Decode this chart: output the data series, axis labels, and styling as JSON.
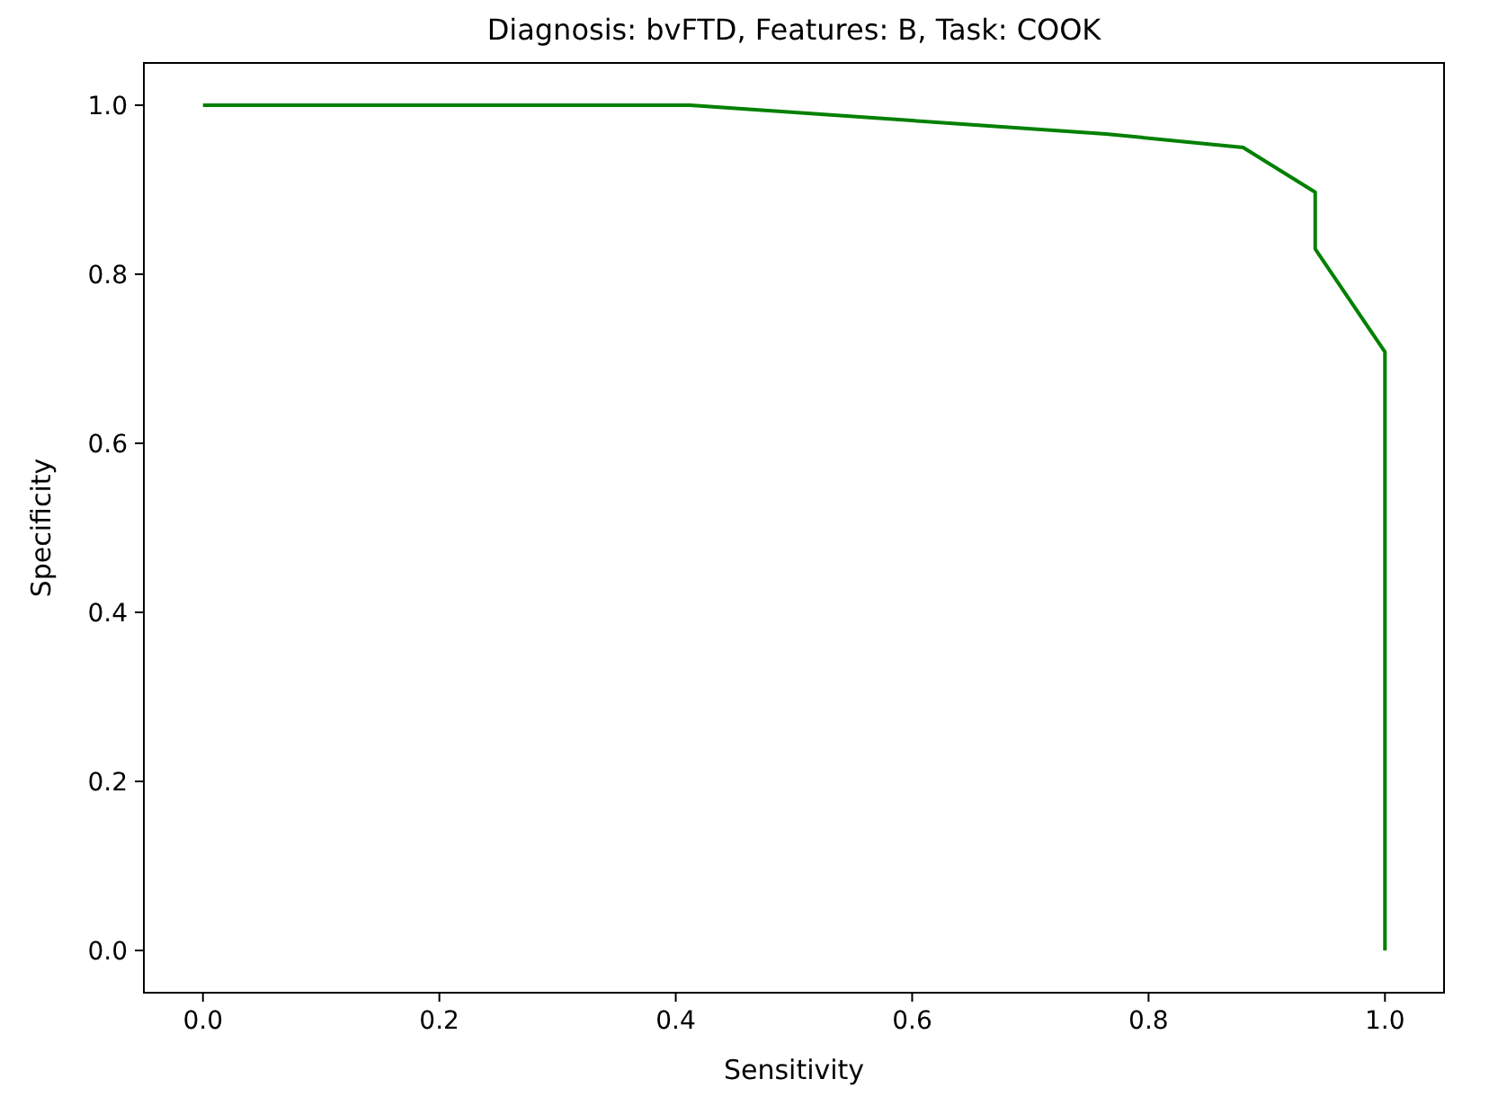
{
  "chart_data": {
    "type": "line",
    "title": "Diagnosis: bvFTD, Features: B, Task: COOK",
    "xlabel": "Sensitivity",
    "ylabel": "Specificity",
    "xlim": [
      -0.05,
      1.05
    ],
    "ylim": [
      -0.05,
      1.05
    ],
    "xticks": [
      {
        "value": 0,
        "label": "0.0"
      },
      {
        "value": 0.2,
        "label": "0.2"
      },
      {
        "value": 0.4,
        "label": "0.4"
      },
      {
        "value": 0.6,
        "label": "0.6"
      },
      {
        "value": 0.8,
        "label": "0.8"
      },
      {
        "value": 1,
        "label": "1.0"
      }
    ],
    "yticks": [
      {
        "value": 0,
        "label": "0.0"
      },
      {
        "value": 0.2,
        "label": "0.2"
      },
      {
        "value": 0.4,
        "label": "0.4"
      },
      {
        "value": 0.6,
        "label": "0.6"
      },
      {
        "value": 0.8,
        "label": "0.8"
      },
      {
        "value": 1,
        "label": "1.0"
      }
    ],
    "series": [
      {
        "color": "#008000",
        "x": [
          0,
          0.412,
          0.764,
          0.88,
          0.941,
          0.941,
          1,
          1
        ],
        "values": [
          1,
          1,
          0.966,
          0.95,
          0.897,
          0.83,
          0.708,
          0
        ]
      }
    ],
    "grid": false,
    "marker": "none",
    "line_style": "solid"
  }
}
